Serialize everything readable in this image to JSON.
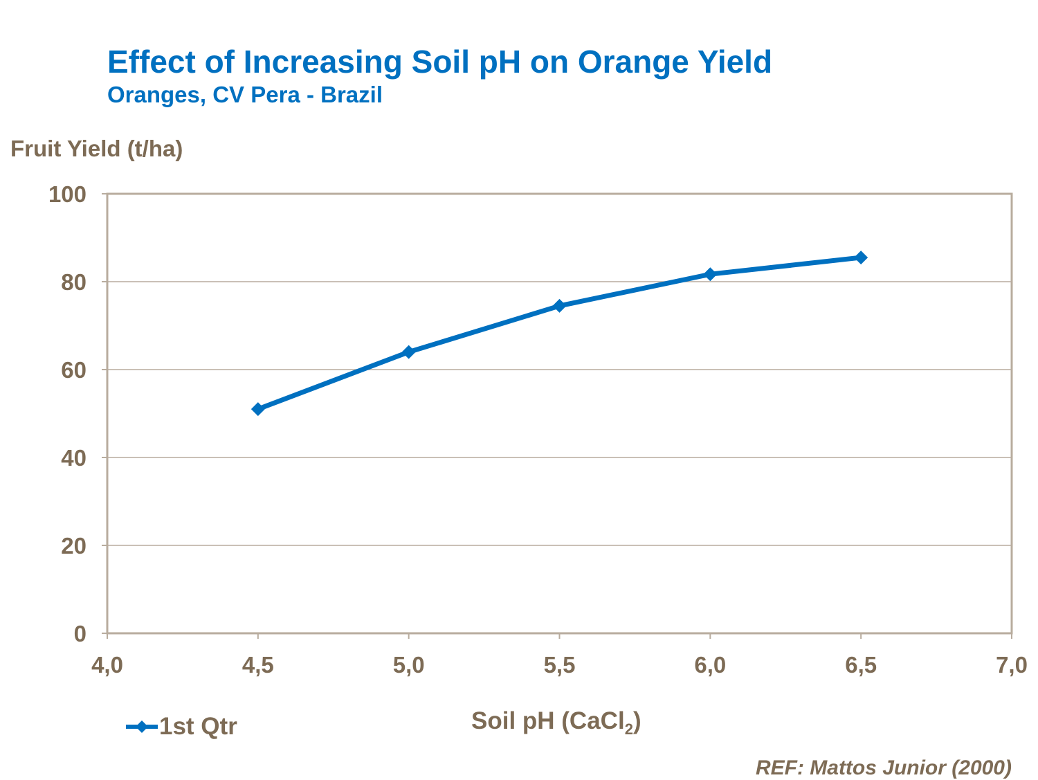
{
  "chart_data": {
    "type": "line",
    "title": "Effect of Increasing Soil pH on Orange Yield",
    "subtitle": "Oranges, CV Pera - Brazil",
    "ylabel": "Fruit Yield (t/ha)",
    "xlabel_main": "Soil pH (CaCl",
    "xlabel_sub": "2",
    "xlabel_end": ")",
    "xlim": [
      4.0,
      7.0
    ],
    "ylim": [
      0,
      100
    ],
    "x_ticks": [
      "4,0",
      "4,5",
      "5,0",
      "5,5",
      "6,0",
      "6,5",
      "7,0"
    ],
    "y_ticks": [
      "0",
      "20",
      "40",
      "60",
      "80",
      "100"
    ],
    "grid": "horizontal",
    "legend_position": "bottom-left",
    "series": [
      {
        "name": "1st Qtr",
        "color": "#0070C0",
        "marker": "diamond",
        "x": [
          4.5,
          5.0,
          5.5,
          6.0,
          6.5
        ],
        "y": [
          51,
          64,
          74.5,
          81.7,
          85.5
        ]
      }
    ],
    "reference": "REF: Mattos Junior (2000)"
  }
}
